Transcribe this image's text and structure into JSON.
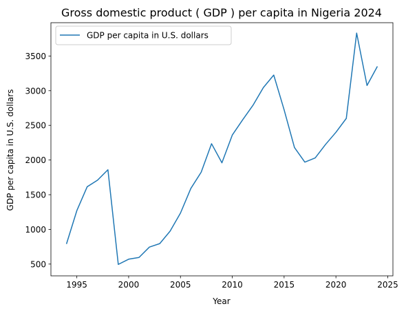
{
  "chart_data": {
    "type": "line",
    "title": "Gross domestic product ( GDP ) per capita in Nigeria 2024",
    "xlabel": "Year",
    "ylabel": "GDP per capita in U.S. dollars",
    "xlim": [
      1992.5,
      2025.5
    ],
    "ylim": [
      330,
      3980
    ],
    "x_ticks": [
      1995,
      2000,
      2005,
      2010,
      2015,
      2020,
      2025
    ],
    "y_ticks": [
      500,
      1000,
      1500,
      2000,
      2500,
      3000,
      3500
    ],
    "legend_position": "top-left",
    "grid": false,
    "series": [
      {
        "name": "GDP per capita in U.S. dollars",
        "color": "#1f77b4",
        "x": [
          1994,
          1995,
          1996,
          1997,
          1998,
          1999,
          2000,
          2001,
          2002,
          2003,
          2004,
          2005,
          2006,
          2007,
          2008,
          2009,
          2010,
          2011,
          2012,
          2013,
          2014,
          2015,
          2016,
          2017,
          2018,
          2019,
          2020,
          2021,
          2022,
          2023,
          2024
        ],
        "values": [
          790,
          1270,
          1615,
          1710,
          1860,
          495,
          570,
          595,
          745,
          795,
          975,
          1235,
          1590,
          1825,
          2235,
          1960,
          2360,
          2580,
          2790,
          3045,
          3225,
          2725,
          2180,
          1970,
          2030,
          2225,
          2400,
          2600,
          3830,
          3075,
          3350
        ]
      }
    ]
  }
}
